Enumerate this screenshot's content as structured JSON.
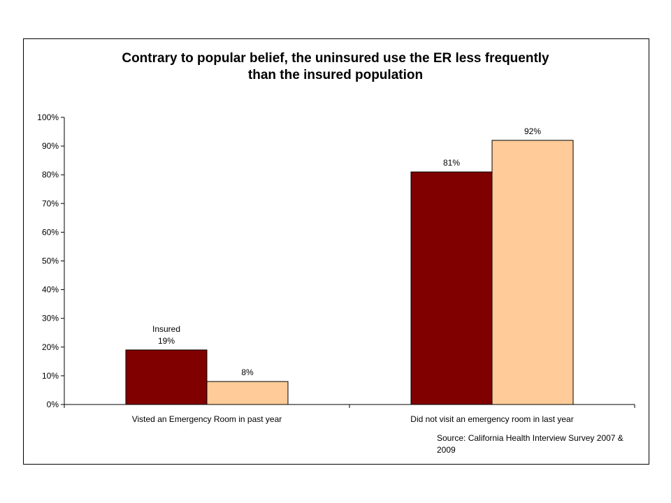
{
  "chart_data": {
    "type": "bar",
    "title_lines": [
      "Contrary to popular belief, the uninsured use the ER less frequently",
      "than the insured population"
    ],
    "categories": [
      "Visted an Emergency Room in past year",
      "Did not visit an emergency room in last year"
    ],
    "series": [
      {
        "name": "Insured",
        "color": "#800000",
        "values": [
          19,
          81
        ],
        "labels": [
          "19%",
          "81%"
        ]
      },
      {
        "color": "#FFCC99",
        "values": [
          8,
          92
        ],
        "labels": [
          "8%",
          "92%"
        ]
      }
    ],
    "annotation": {
      "text": "Insured",
      "series_index": 0,
      "category_index": 0
    },
    "ylim": [
      0,
      100
    ],
    "yticks": [
      "0%",
      "10%",
      "20%",
      "30%",
      "40%",
      "50%",
      "60%",
      "70%",
      "80%",
      "90%",
      "100%"
    ],
    "grid": false,
    "legend": "none",
    "source_lines": [
      "Source: California Health Interview Survey 2007 &",
      "2009"
    ]
  }
}
